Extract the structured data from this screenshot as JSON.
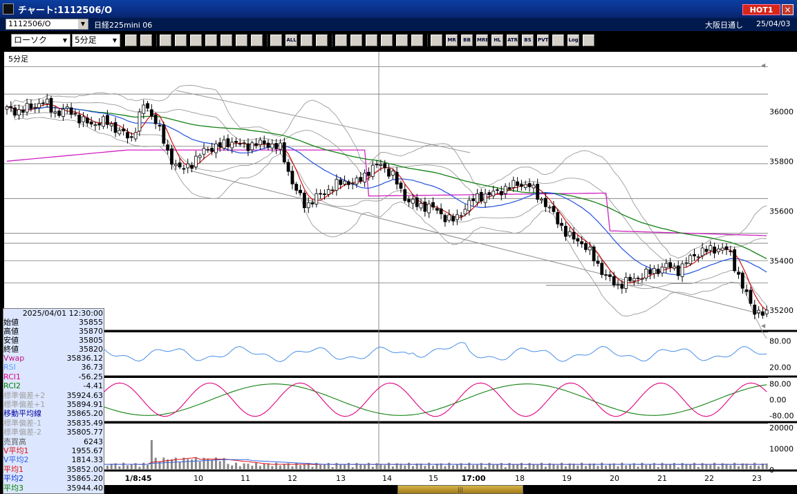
{
  "window": {
    "title": "チャート:1112506/O",
    "hot_label": "HOT1",
    "close_label": "×"
  },
  "symbol_bar": {
    "symbol": "1112506/O",
    "name": "日経225mini 06",
    "market": "大阪日通し",
    "date": "25/04/03"
  },
  "toolbar": {
    "chart_type": "ローソク",
    "interval": "5分足",
    "icons": [
      "magnify-icon",
      "window-icon",
      "pencil-icon",
      "link-icon",
      "cursor-icon",
      "undo-icon",
      "notes-icon",
      "trash-icon",
      "candle-icon",
      "candle-alt-icon",
      "all-icon",
      "grid-icon",
      "tools-icon",
      "color-icon",
      "arrow-down-icon",
      "search-icon",
      "table-icon",
      "split-icon",
      "blank-icon",
      "ma-icon",
      "mr-icon",
      "bb-icon",
      "mre-icon",
      "hl-icon",
      "atr-icon",
      "ps-icon",
      "pvt-icon",
      "box-icon",
      "log-icon",
      "export-icon"
    ],
    "icon_labels": [
      "",
      "",
      "",
      "",
      "",
      "",
      "",
      "",
      "",
      "",
      "ALL",
      "",
      "",
      "",
      "",
      "",
      "",
      "",
      "",
      "",
      "MR",
      "BB",
      "MRE",
      "HL",
      "ATR",
      "BS",
      "PVT",
      "",
      "Log",
      ""
    ]
  },
  "chart_data": {
    "type": "candlestick",
    "title": "5分足",
    "price_axis": {
      "ticks": [
        36000,
        35800,
        35600,
        35400,
        35200
      ],
      "range": [
        35120,
        36240
      ]
    },
    "rsi_axis": {
      "ticks": [
        "80.00",
        "20.00"
      ]
    },
    "rci_axis": {
      "ticks": [
        "80.00",
        "0.00",
        "-80.00"
      ]
    },
    "volume_axis": {
      "ticks": [
        "20000",
        "10000",
        "0"
      ]
    },
    "x_labels": [
      "1/8:45",
      "10",
      "11",
      "12",
      "13",
      "14",
      "15",
      "17:00",
      "18",
      "19",
      "20",
      "21",
      "22",
      "23"
    ],
    "close_path": [
      36010,
      36000,
      36020,
      36040,
      35990,
      36010,
      35960,
      35950,
      35960,
      35920,
      35890,
      36030,
      35960,
      35820,
      35760,
      35800,
      35850,
      35860,
      35880,
      35860,
      35870,
      35870,
      35850,
      35700,
      35620,
      35660,
      35690,
      35720,
      35710,
      35760,
      35790,
      35740,
      35650,
      35620,
      35620,
      35580,
      35560,
      35630,
      35660,
      35670,
      35690,
      35710,
      35700,
      35640,
      35580,
      35500,
      35480,
      35420,
      35340,
      35300,
      35320,
      35340,
      35360,
      35380,
      35360,
      35420,
      35440,
      35450,
      35440,
      35300,
      35200,
      35180
    ],
    "ohlc_panel": {
      "datetime": "2025/04/01  12:30:00",
      "open_label": "始値",
      "open": "35855",
      "high_label": "高値",
      "high": "35870",
      "low_label": "安値",
      "low": "35805",
      "close_label": "終値",
      "close": "35820"
    },
    "indicators": [
      {
        "label": "Vwap",
        "value": "35836.12",
        "color": "#c01080"
      },
      {
        "label": "RSI",
        "value": "36.73",
        "color": "#5fa0ff"
      },
      {
        "label": "RCI1",
        "value": "-56.25",
        "color": "#e0007e"
      },
      {
        "label": "RCI2",
        "value": "-4.41",
        "color": "#008000"
      },
      {
        "label": "標準偏差+2",
        "value": "35924.63",
        "color": "#a0a0a0"
      },
      {
        "label": "標準偏差+1",
        "value": "35894.91",
        "color": "#a0a0a0"
      },
      {
        "label": "移動平均線",
        "value": "35865.20",
        "color": "#0000a0"
      },
      {
        "label": "標準偏差-1",
        "value": "35835.49",
        "color": "#a0a0a0"
      },
      {
        "label": "標準偏差-2",
        "value": "35805.77",
        "color": "#a0a0a0"
      },
      {
        "label": "売買高",
        "value": "6243",
        "color": "#606060"
      },
      {
        "label": "V平均1",
        "value": "1955.67",
        "color": "#e01010"
      },
      {
        "label": "V平均2",
        "value": "1814.33",
        "color": "#3060e0"
      },
      {
        "label": "平均1",
        "value": "35852.00",
        "color": "#e01010"
      },
      {
        "label": "平均2",
        "value": "35865.20",
        "color": "#0030d0"
      },
      {
        "label": "平均3",
        "value": "35944.40",
        "color": "#008000"
      }
    ]
  },
  "colors": {
    "up": "#ffffff",
    "down": "#000000",
    "ma_red": "#d01010",
    "ma_blue": "#2050e0",
    "ma_green": "#108010",
    "vwap": "#d020c0",
    "bands": "#9a9a9a",
    "grid": "#bdbdbd"
  }
}
